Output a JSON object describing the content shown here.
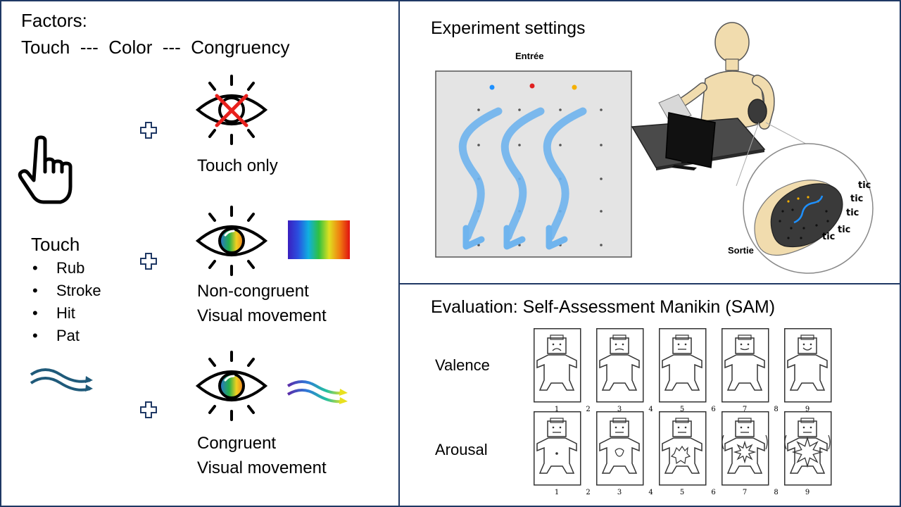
{
  "left": {
    "factors_title": "Factors:",
    "factors_line": "Touch  ---  Color  ---  Congruency",
    "touch_title": "Touch",
    "touch_items": [
      "Rub",
      "Stroke",
      "Hit",
      "Pat"
    ],
    "condition_1": "Touch only",
    "condition_2_line1": "Non-congruent",
    "condition_2_line2": "Visual movement",
    "condition_3_line1": "Congruent",
    "condition_3_line2": "Visual movement",
    "icons": [
      "hand-pointer-icon",
      "wave-arrows-icon",
      "plus-icon",
      "eye-crossed-icon",
      "eye-color-icon",
      "spectrum-bar",
      "rainbow-wave-arrows-icon"
    ]
  },
  "experiment": {
    "title": "Experiment settings",
    "entry_label": "Entrée",
    "exit_label": "Sortie",
    "tic_labels": [
      "tic",
      "tic",
      "tic",
      "tic",
      "tic"
    ],
    "dot_colors": [
      "#1e90ff",
      "#e02020",
      "#f5b000"
    ],
    "stroke_color": "#6fb4ee"
  },
  "evaluation": {
    "title": "Evaluation:  Self-Assessment Manikin (SAM)",
    "rows": [
      {
        "label": "Valence",
        "numbers": [
          "1",
          "2",
          "3",
          "4",
          "5",
          "6",
          "7",
          "8",
          "9"
        ]
      },
      {
        "label": "Arousal",
        "numbers": [
          "1",
          "2",
          "3",
          "4",
          "5",
          "6",
          "7",
          "8",
          "9"
        ]
      }
    ]
  }
}
